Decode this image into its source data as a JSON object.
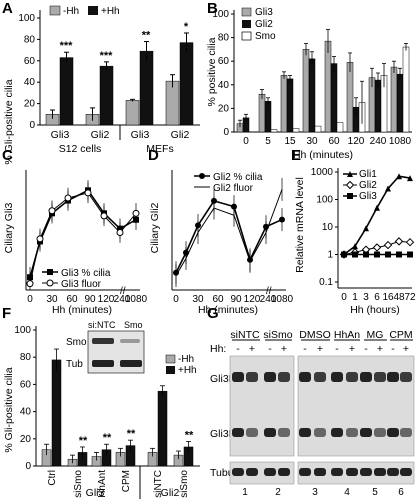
{
  "figure": {
    "panels": [
      "A",
      "B",
      "C",
      "D",
      "E",
      "F",
      "G"
    ]
  },
  "chart_data": [
    {
      "panel": "A",
      "type": "bar",
      "ylabel": "% Gli-positive cilia",
      "ylim": [
        0,
        100
      ],
      "yticks": [
        0,
        20,
        40,
        60,
        80,
        100
      ],
      "categories": [
        "Gli3",
        "Gli2",
        "Gli3",
        "Gli2"
      ],
      "groups": [
        "S12 cells",
        "MEFs"
      ],
      "series": [
        {
          "name": "-Hh",
          "color": "#aaaaaa",
          "values": [
            10,
            10,
            23,
            41
          ],
          "errors": [
            4,
            6,
            1,
            6
          ]
        },
        {
          "name": "+Hh",
          "color": "#111111",
          "values": [
            63,
            55,
            69,
            77
          ],
          "errors": [
            5,
            4,
            9,
            9
          ]
        }
      ],
      "significance": [
        "***",
        "***",
        "**",
        "*"
      ]
    },
    {
      "panel": "B",
      "type": "bar",
      "ylabel": "% positive cilia",
      "xlabel": "Hh (minutes)",
      "ylim": [
        0,
        100
      ],
      "yticks": [
        0,
        20,
        40,
        60,
        80,
        100
      ],
      "categories": [
        "0",
        "5",
        "15",
        "30",
        "60",
        "120",
        "240",
        "1080"
      ],
      "series": [
        {
          "name": "Gli3",
          "color": "#aaaaaa",
          "values": [
            7,
            32,
            48,
            70,
            77,
            59,
            46,
            55
          ],
          "errors": [
            3,
            4,
            3,
            5,
            10,
            8,
            8,
            5
          ]
        },
        {
          "name": "Gli2",
          "color": "#111111",
          "values": [
            12,
            26,
            45,
            62,
            58,
            21,
            44,
            49
          ],
          "errors": [
            3,
            3,
            3,
            6,
            6,
            8,
            6,
            5
          ]
        },
        {
          "name": "Smo",
          "color": "#ffffff",
          "values": [
            0,
            2,
            3,
            5,
            8,
            25,
            48,
            72
          ],
          "errors": [
            0,
            0,
            0,
            0,
            0,
            18,
            10,
            3
          ]
        }
      ]
    },
    {
      "panel": "C",
      "type": "line",
      "ylabel": "Ciliary Gli3",
      "xlabel": "Hh (minutes)",
      "xticks": [
        "0",
        "30",
        "60",
        "90",
        "120",
        "240",
        "1080"
      ],
      "series": [
        {
          "name": "Gli3 % cilia",
          "marker": "square",
          "x": [
            0,
            5,
            15,
            30,
            60,
            120,
            240,
            1080
          ],
          "y": [
            10,
            38,
            60,
            70,
            78,
            60,
            48,
            55
          ]
        },
        {
          "name": "Gli3 fluor",
          "marker": "open-circle",
          "x": [
            0,
            5,
            15,
            30,
            60,
            120,
            240,
            1080
          ],
          "y": [
            5,
            40,
            62,
            72,
            76,
            58,
            45,
            60
          ]
        }
      ]
    },
    {
      "panel": "D",
      "type": "line",
      "ylabel": "Ciliary Gli2",
      "xlabel": "Hh (minutes)",
      "xticks": [
        "0",
        "30",
        "60",
        "90",
        "120",
        "240",
        "1080"
      ],
      "series": [
        {
          "name": "Gli2 % cilia",
          "marker": "filled-circle",
          "x": [
            0,
            5,
            15,
            30,
            60,
            120,
            240,
            1080
          ],
          "y": [
            12,
            26,
            45,
            62,
            58,
            21,
            44,
            49
          ]
        },
        {
          "name": "Gli2 fluor",
          "marker": "line",
          "x": [
            0,
            5,
            15,
            30,
            60,
            120,
            240,
            1080
          ],
          "y": [
            10,
            22,
            40,
            57,
            52,
            20,
            40,
            70
          ]
        }
      ]
    },
    {
      "panel": "E",
      "type": "line",
      "ylabel": "Relative mRNA level",
      "xlabel": "Hh (hours)",
      "yscale": "log",
      "ylim": [
        0.1,
        1000
      ],
      "yticks": [
        "0.1",
        "1",
        "10",
        "100",
        "1000"
      ],
      "categories": [
        "0",
        "1",
        "3",
        "6",
        "16",
        "48",
        "72"
      ],
      "series": [
        {
          "name": "Gli1",
          "marker": "filled-triangle",
          "y": [
            1,
            2,
            9,
            50,
            250,
            700,
            600
          ]
        },
        {
          "name": "Gli2",
          "marker": "open-diamond",
          "y": [
            1,
            1.2,
            1.5,
            1.8,
            2.2,
            3,
            2.8
          ]
        },
        {
          "name": "Gli3",
          "marker": "filled-square",
          "y": [
            1,
            1,
            1,
            1,
            1,
            1,
            1
          ]
        }
      ]
    },
    {
      "panel": "F",
      "type": "bar",
      "ylabel": "% Gli-positive cilia",
      "ylim": [
        0,
        100
      ],
      "yticks": [
        0,
        20,
        40,
        60,
        80,
        100
      ],
      "categories": [
        "Ctrl",
        "siSmo",
        "HhAnt",
        "CPM",
        "siNTC",
        "siSmo"
      ],
      "groups": [
        "Gli3",
        "Gli2"
      ],
      "series": [
        {
          "name": "-Hh",
          "color": "#aaaaaa",
          "values": [
            12,
            5,
            7,
            10,
            10,
            8
          ],
          "errors": [
            4,
            3,
            3,
            3,
            3,
            3
          ]
        },
        {
          "name": "+Hh",
          "color": "#111111",
          "values": [
            78,
            10,
            12,
            15,
            55,
            14
          ],
          "errors": [
            8,
            4,
            4,
            4,
            4,
            4
          ]
        }
      ],
      "significance": [
        "",
        "**",
        "**",
        "**",
        "",
        "**"
      ],
      "inset": {
        "lanes": [
          "si:NTC",
          "Smo"
        ],
        "rows": [
          "Smo",
          "Tub"
        ]
      }
    }
  ],
  "panelG": {
    "group1": [
      "siNTC",
      "siSmo"
    ],
    "group2": [
      "DMSO",
      "HhAn",
      "MG",
      "CPM"
    ],
    "hh_label": "Hh:",
    "lanes": [
      "-",
      "+",
      "-",
      "+"
    ],
    "lanes2": [
      "-",
      "+",
      "-",
      "+",
      "-",
      "+",
      "-",
      "+"
    ],
    "rows": [
      "Gli3FL",
      "Gli3R",
      "Tubulin"
    ],
    "lane_numbers": [
      "1",
      "2",
      "3",
      "4",
      "5",
      "6"
    ]
  }
}
